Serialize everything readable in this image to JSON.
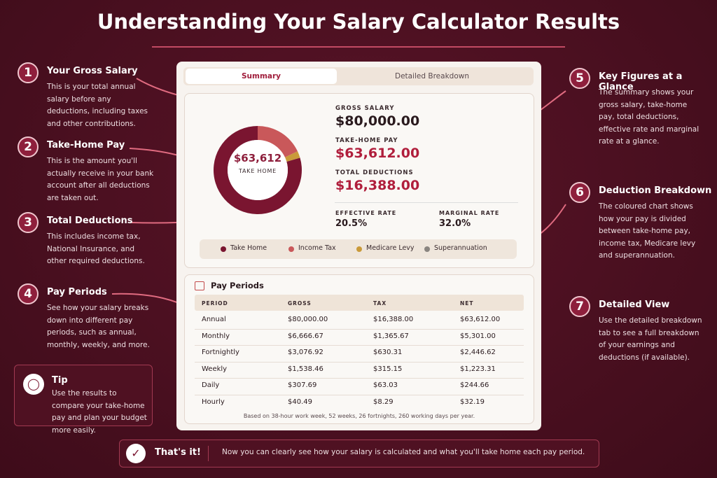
{
  "title": "Understanding Your Salary Calculator Results",
  "steps": [
    {
      "number": "1",
      "title": "Your Gross Salary",
      "text": "This is your total annual salary before any deductions, including taxes and other contributions."
    },
    {
      "number": "2",
      "title": "Take-Home Pay",
      "text": "This is the amount you'll actually receive in your bank account after all deductions are taken out."
    },
    {
      "number": "3",
      "title": "Total Deductions",
      "text": "This includes income tax, National Insurance, and other required deductions."
    },
    {
      "number": "4",
      "title": "Pay Periods",
      "text": "See how your salary breaks down into different pay periods, such as annual, monthly, weekly, and more."
    },
    {
      "number": "5",
      "title": "Key Figures at a Glance",
      "text": "The summary shows your gross salary, take-home pay, total deductions, effective rate and marginal rate at a glance."
    },
    {
      "number": "6",
      "title": "Deduction Breakdown",
      "text": "The coloured chart shows how your pay is divided between take-home pay, income tax, Medicare levy and superannuation."
    },
    {
      "number": "7",
      "title": "Detailed View",
      "text": "Use the detailed breakdown tab to see a full breakdown of your earnings and deductions (if available)."
    }
  ],
  "tip": {
    "title": "Tip",
    "text": "Use the results to compare your take-home pay and plan your budget more easily."
  },
  "card": {
    "tabs": [
      "Summary",
      "Detailed Breakdown"
    ],
    "donut_center": "$63,612",
    "donut_center_label": "TAKE HOME",
    "figures": [
      {
        "label": "GROSS SALARY",
        "value": "$80,000.00"
      },
      {
        "label": "TAKE-HOME PAY",
        "value": "$63,612.00"
      },
      {
        "label": "TOTAL DEDUCTIONS",
        "value": "$16,388.00"
      }
    ],
    "rates": [
      {
        "label": "EFFECTIVE RATE",
        "value": "20.5%"
      },
      {
        "label": "MARGINAL RATE",
        "value": "32.0%"
      }
    ],
    "legend": [
      {
        "name": "Take Home",
        "color": "#7a1530",
        "share": 79.5
      },
      {
        "name": "Income Tax",
        "color": "#c9585a",
        "share": 18
      },
      {
        "name": "Medicare Levy",
        "color": "#c99a3a",
        "share": 2.5
      },
      {
        "name": "Superannuation",
        "color": "#8a8580",
        "share": 0
      }
    ]
  },
  "pay_periods": {
    "title": "Pay Periods",
    "columns": [
      "PERIOD",
      "GROSS",
      "TAX",
      "NET"
    ],
    "rows": [
      [
        "Annual",
        "$80,000.00",
        "$16,388.00",
        "$63,612.00"
      ],
      [
        "Monthly",
        "$6,666.67",
        "$1,365.67",
        "$5,301.00"
      ],
      [
        "Fortnightly",
        "$3,076.92",
        "$630.31",
        "$2,446.62"
      ],
      [
        "Weekly",
        "$1,538.46",
        "$315.15",
        "$1,223.31"
      ],
      [
        "Daily",
        "$307.69",
        "$63.03",
        "$244.66"
      ],
      [
        "Hourly",
        "$40.49",
        "$8.29",
        "$32.19"
      ]
    ],
    "note": "Based on 38-hour work week, 52 weeks, 26 fortnights, 260 working days per year."
  },
  "footer": {
    "title": "That's it!",
    "text": "Now you can clearly see how your salary is calculated and what you'll take home each pay period."
  }
}
